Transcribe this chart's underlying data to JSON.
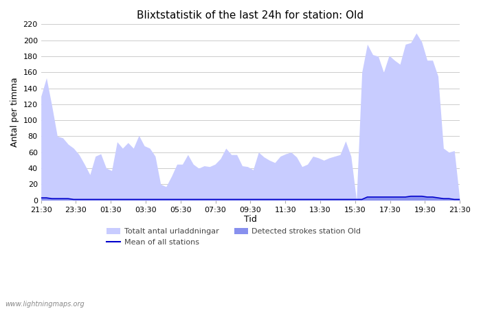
{
  "title": "Blixtstatistik of the last 24h for station: Old",
  "xlabel": "Tid",
  "ylabel": "Antal per timma",
  "watermark": "www.lightningmaps.org",
  "xlim_labels": [
    "21:30",
    "23:30",
    "01:30",
    "03:30",
    "05:30",
    "07:30",
    "09:30",
    "11:30",
    "13:30",
    "15:30",
    "17:30",
    "19:30",
    "21:30"
  ],
  "ylim": [
    0,
    220
  ],
  "yticks": [
    0,
    20,
    40,
    60,
    80,
    100,
    120,
    140,
    160,
    180,
    200,
    220
  ],
  "legend_entries": [
    "Totalt antal urladdningar",
    "Detected strokes station Old",
    "Mean of all stations"
  ],
  "color_total": "#c8ccff",
  "color_detected": "#8890ee",
  "color_mean": "#0000cc",
  "bg_color": "#ffffff",
  "total_values": [
    130,
    153,
    118,
    80,
    78,
    70,
    65,
    57,
    45,
    32,
    55,
    58,
    40,
    37,
    73,
    65,
    72,
    65,
    81,
    68,
    65,
    55,
    20,
    17,
    30,
    45,
    45,
    57,
    45,
    40,
    43,
    42,
    45,
    52,
    65,
    57,
    57,
    43,
    42,
    38,
    60,
    54,
    50,
    47,
    55,
    58,
    60,
    54,
    42,
    45,
    55,
    53,
    50,
    53,
    55,
    57,
    74,
    55,
    0,
    160,
    195,
    182,
    180,
    160,
    181,
    175,
    170,
    195,
    197,
    209,
    198,
    175,
    175,
    155,
    65,
    60,
    62,
    0
  ],
  "detected_values": [
    3,
    3,
    2,
    2,
    2,
    2,
    1,
    1,
    1,
    1,
    1,
    1,
    1,
    1,
    1,
    1,
    1,
    1,
    1,
    1,
    1,
    1,
    1,
    1,
    1,
    1,
    1,
    1,
    1,
    1,
    1,
    1,
    1,
    1,
    1,
    1,
    1,
    1,
    1,
    1,
    1,
    1,
    1,
    1,
    1,
    1,
    1,
    1,
    1,
    1,
    1,
    1,
    1,
    1,
    1,
    1,
    1,
    1,
    1,
    1,
    4,
    4,
    4,
    4,
    4,
    4,
    4,
    4,
    5,
    5,
    5,
    4,
    4,
    3,
    2,
    2,
    1,
    1
  ],
  "mean_values": [
    3,
    3,
    2,
    2,
    2,
    2,
    1,
    1,
    1,
    1,
    1,
    1,
    1,
    1,
    1,
    1,
    1,
    1,
    1,
    1,
    1,
    1,
    1,
    1,
    1,
    1,
    1,
    1,
    1,
    1,
    1,
    1,
    1,
    1,
    1,
    1,
    1,
    1,
    1,
    1,
    1,
    1,
    1,
    1,
    1,
    1,
    1,
    1,
    1,
    1,
    1,
    1,
    1,
    1,
    1,
    1,
    1,
    1,
    1,
    1,
    4,
    4,
    4,
    4,
    4,
    4,
    4,
    4,
    5,
    5,
    5,
    4,
    4,
    3,
    2,
    2,
    1,
    1
  ]
}
